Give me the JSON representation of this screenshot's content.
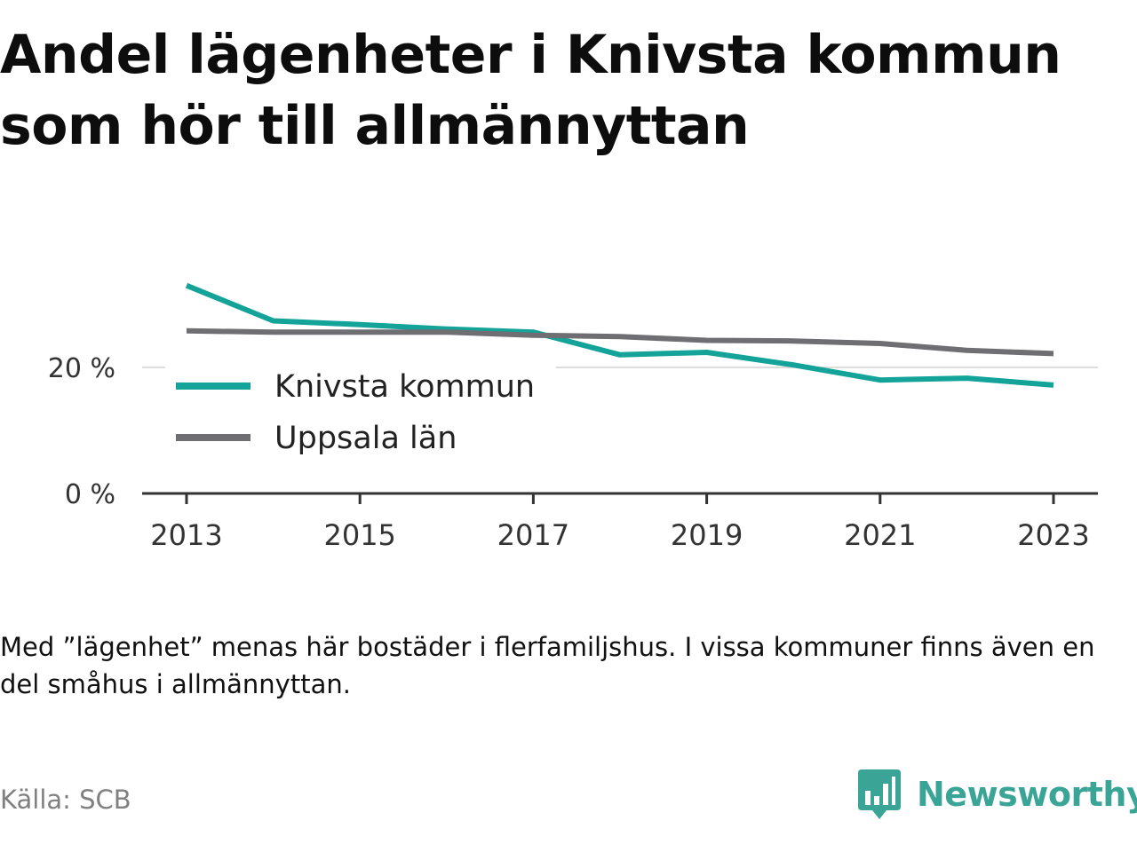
{
  "title": "Andel lägenheter i Knivsta kommun som hör till allmännyttan",
  "note": "Med ”lägenhet” menas här bostäder i flerfamiljshus. I vissa kommuner finns även en del småhus i allmännyttan.",
  "source": "Källa: SCB",
  "logo": {
    "text": "Newsworthy",
    "icon": "bar-chart-speech-bubble-icon",
    "color": "#3aa596"
  },
  "chart_data": {
    "type": "line",
    "x": [
      2013,
      2014,
      2015,
      2016,
      2017,
      2018,
      2019,
      2020,
      2021,
      2022,
      2023
    ],
    "series": [
      {
        "name": "Knivsta kommun",
        "color": "#13a398",
        "values": [
          33.0,
          27.4,
          26.8,
          26.1,
          25.6,
          22.0,
          22.4,
          20.4,
          18.0,
          18.3,
          17.2
        ]
      },
      {
        "name": "Uppsala län",
        "color": "#6f6e73",
        "values": [
          25.8,
          25.6,
          25.6,
          25.6,
          25.1,
          24.9,
          24.3,
          24.2,
          23.8,
          22.7,
          22.2
        ]
      }
    ],
    "xticks": [
      2013,
      2015,
      2017,
      2019,
      2021,
      2023
    ],
    "yticks": [
      0,
      20
    ],
    "ytick_labels": [
      "0 %",
      "20 %"
    ],
    "ylim": [
      0,
      37
    ],
    "grid": "horizontal",
    "legend_position": "inside-left"
  }
}
